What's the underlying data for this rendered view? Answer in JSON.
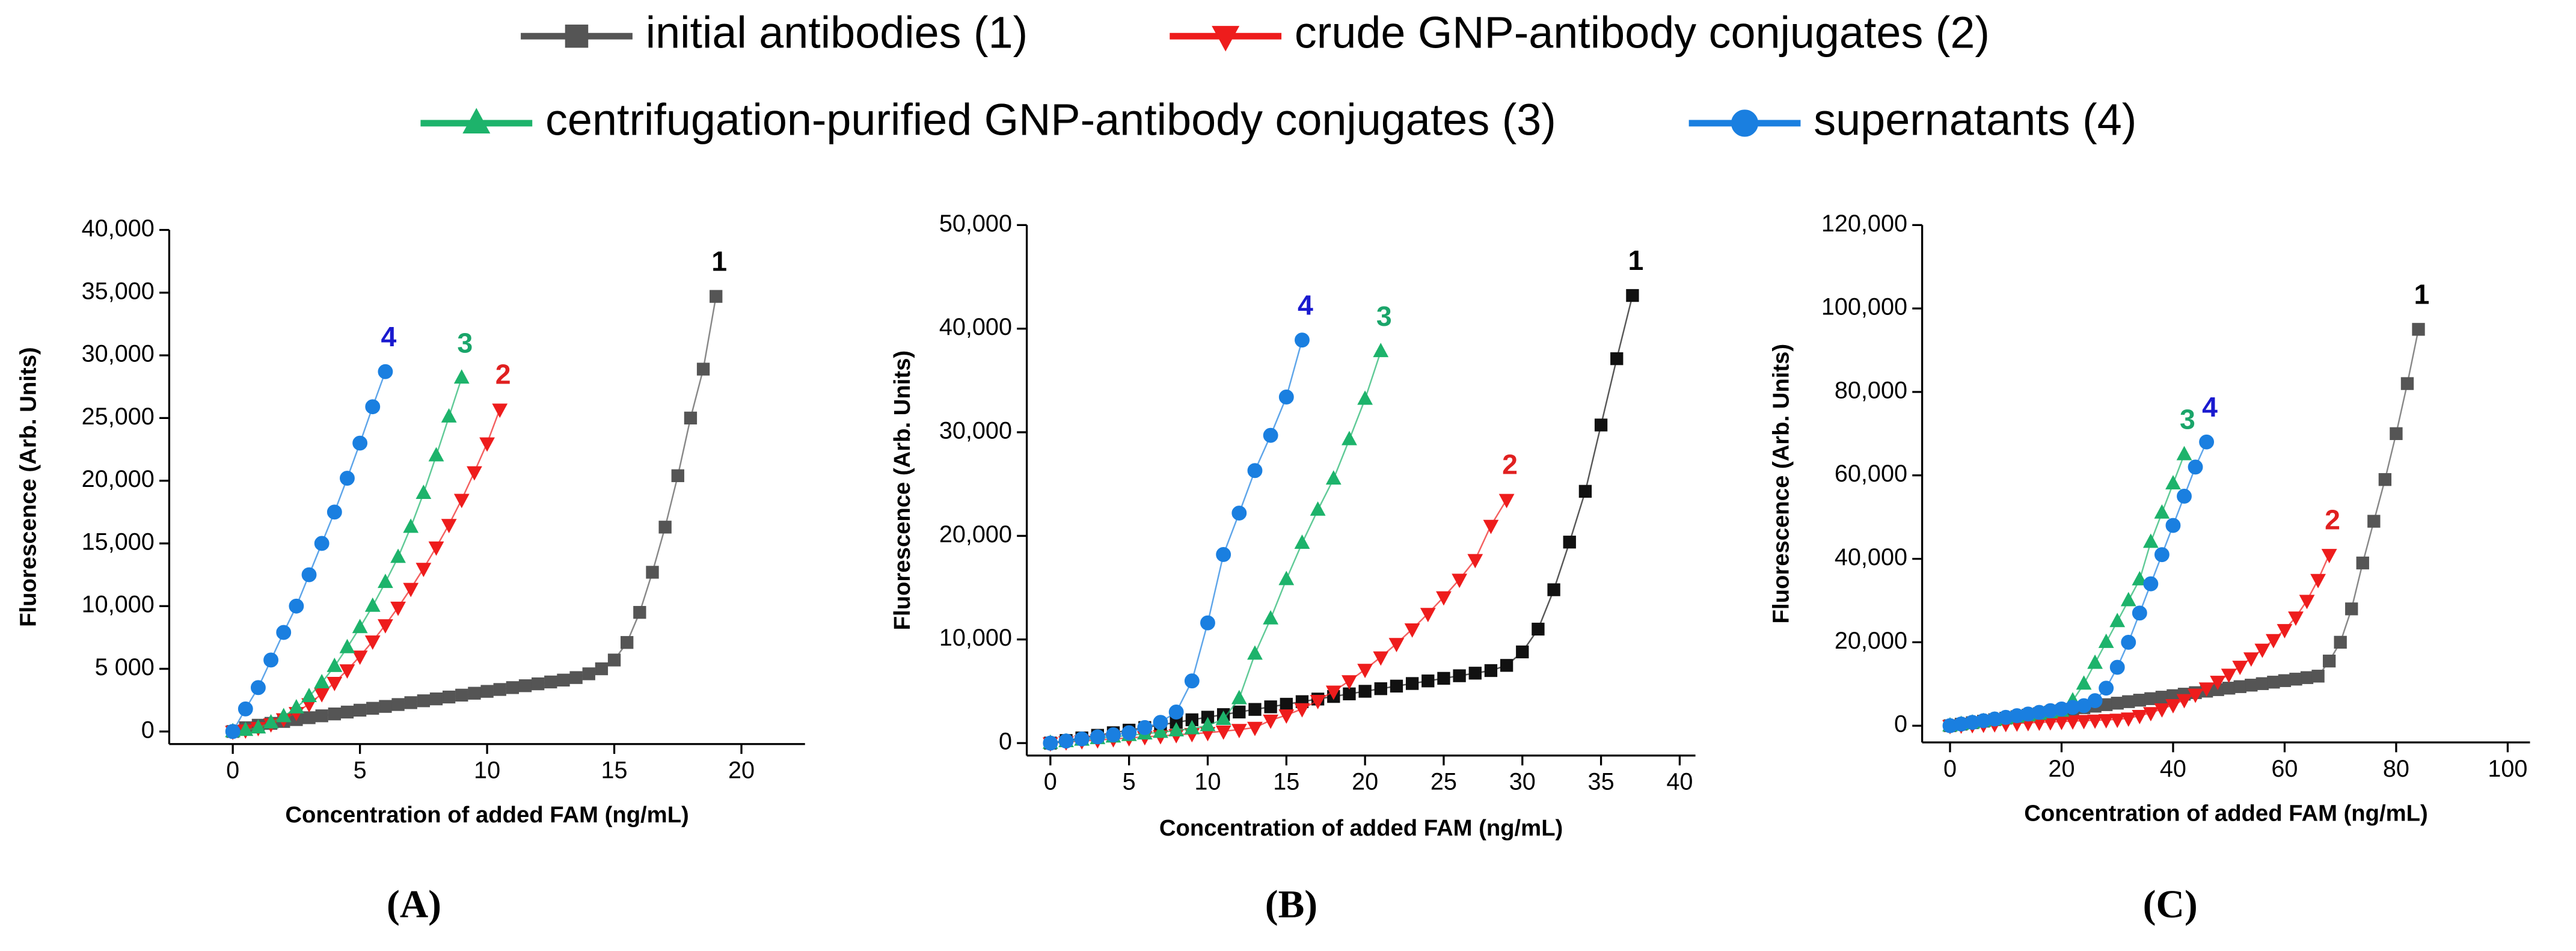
{
  "legend": [
    {
      "name": "initial antibodies (1)",
      "color": "#555555",
      "marker": "square"
    },
    {
      "name": "crude GNP-antibody conjugates (2)",
      "color": "#ee1c1c",
      "marker": "tri-down"
    },
    {
      "name": "centrifugation-purified GNP-antibody conjugates (3)",
      "color": "#1db36b",
      "marker": "tri-up"
    },
    {
      "name": "supernatants (4)",
      "color": "#1a7fe0",
      "marker": "circle"
    }
  ],
  "chart_data": [
    {
      "type": "line",
      "caption": "(A)",
      "x_label": "Concentration of added FAM (ng/mL)",
      "y_label": "Fluorescence (Arb. Units)",
      "xlim": [
        -2.5,
        22.5
      ],
      "xticks": [
        0,
        5,
        10,
        15,
        20
      ],
      "ylim": [
        -1000,
        40000
      ],
      "yticks": [
        0,
        {
          "value": 5000,
          "label": "5 000"
        },
        {
          "value": 10000,
          "label": "10,000"
        },
        {
          "value": 15000,
          "label": "15,000"
        },
        {
          "value": 20000,
          "label": "20,000"
        },
        {
          "value": 25000,
          "label": "25,000"
        },
        {
          "value": 30000,
          "label": "30,000"
        },
        {
          "value": 35000,
          "label": "35,000"
        },
        {
          "value": 40000,
          "label": "40,000"
        }
      ],
      "series": [
        {
          "label": "1",
          "color": "#555555",
          "label_color": "#000000",
          "x": [
            0,
            0.5,
            1,
            1.5,
            2,
            2.5,
            3,
            3.5,
            4,
            4.5,
            5,
            5.5,
            6,
            6.5,
            7,
            7.5,
            8,
            8.5,
            9,
            9.5,
            10,
            10.5,
            11,
            11.5,
            12,
            12.5,
            13,
            13.5,
            14,
            14.5,
            15,
            15.5,
            16,
            16.5,
            17,
            17.5,
            18,
            18.5,
            19
          ],
          "values": [
            0,
            300,
            500,
            650,
            800,
            950,
            1100,
            1250,
            1400,
            1550,
            1700,
            1850,
            2000,
            2150,
            2300,
            2450,
            2600,
            2750,
            2900,
            3050,
            3200,
            3350,
            3500,
            3650,
            3800,
            3950,
            4100,
            4300,
            4600,
            5000,
            5700,
            7100,
            9500,
            12700,
            16300,
            20400,
            25000,
            28900,
            34700
          ]
        },
        {
          "label": "2",
          "color": "#ee1c1c",
          "label_color": "#e02020",
          "x": [
            0,
            0.5,
            1,
            1.5,
            2,
            2.5,
            3,
            3.5,
            4,
            4.5,
            5,
            5.5,
            6,
            6.5,
            7,
            7.5,
            8,
            8.5,
            9,
            9.5,
            10,
            10.5
          ],
          "values": [
            0,
            100,
            300,
            600,
            1000,
            1500,
            2200,
            3000,
            3900,
            4900,
            6000,
            7200,
            8500,
            9900,
            11400,
            13000,
            14700,
            16500,
            18500,
            20700,
            23000,
            25700
          ]
        },
        {
          "label": "3",
          "color": "#1db36b",
          "label_color": "#1aa56a",
          "x": [
            0,
            0.5,
            1,
            1.5,
            2,
            2.5,
            3,
            3.5,
            4,
            4.5,
            5,
            5.5,
            6,
            6.5,
            7,
            7.5,
            8,
            8.5,
            9
          ],
          "values": [
            0,
            100,
            300,
            700,
            1200,
            1900,
            2800,
            3900,
            5200,
            6700,
            8300,
            10000,
            11900,
            13900,
            16300,
            19000,
            22000,
            25100,
            28200
          ]
        },
        {
          "label": "4",
          "color": "#1a7fe0",
          "label_color": "#1a1acf",
          "x": [
            0,
            0.5,
            1,
            1.5,
            2,
            2.5,
            3,
            3.5,
            4,
            4.5,
            5,
            5.5,
            6
          ],
          "values": [
            0,
            1800,
            3500,
            5700,
            7900,
            10000,
            12500,
            15000,
            17500,
            20200,
            23000,
            25900,
            28700
          ]
        }
      ]
    },
    {
      "type": "line",
      "caption": "(B)",
      "x_label": "Concentration of added FAM (ng/mL)",
      "y_label": "Fluorescence (Arb. Units)",
      "xlim": [
        -1.5,
        41
      ],
      "xticks": [
        0,
        5,
        10,
        15,
        20,
        25,
        30,
        35,
        40
      ],
      "ylim": [
        -1200,
        50000
      ],
      "yticks": [
        0,
        {
          "value": 10000,
          "label": "10,000"
        },
        {
          "value": 20000,
          "label": "20,000"
        },
        {
          "value": 30000,
          "label": "30,000"
        },
        {
          "value": 40000,
          "label": "40,000"
        },
        {
          "value": 50000,
          "label": "50,000"
        }
      ],
      "series": [
        {
          "label": "1",
          "color": "#111111",
          "label_color": "#000000",
          "x": [
            0,
            1,
            2,
            3,
            4,
            5,
            6,
            7,
            8,
            9,
            10,
            11,
            12,
            13,
            14,
            15,
            16,
            17,
            18,
            19,
            20,
            21,
            22,
            23,
            24,
            25,
            26,
            27,
            28,
            29,
            30,
            31,
            32,
            33,
            34,
            35,
            36,
            37
          ],
          "values": [
            0,
            250,
            500,
            750,
            1000,
            1250,
            1500,
            1750,
            2000,
            2250,
            2500,
            2750,
            3000,
            3250,
            3500,
            3750,
            4000,
            4250,
            4500,
            4750,
            5000,
            5250,
            5500,
            5750,
            6000,
            6250,
            6500,
            6750,
            7000,
            7500,
            8800,
            11000,
            14800,
            19400,
            24300,
            30700,
            37100,
            43200
          ]
        },
        {
          "label": "2",
          "color": "#ee1c1c",
          "label_color": "#e02020",
          "x": [
            0,
            1,
            2,
            3,
            4,
            5,
            6,
            7,
            8,
            9,
            10,
            11,
            12,
            13,
            14,
            15,
            16,
            17,
            18,
            19,
            20,
            21,
            22,
            23,
            24,
            25,
            26,
            27,
            28,
            29
          ],
          "values": [
            0,
            100,
            200,
            300,
            400,
            500,
            600,
            700,
            800,
            900,
            1000,
            1150,
            1300,
            1500,
            2200,
            2700,
            3300,
            4100,
            5000,
            6000,
            7100,
            8300,
            9600,
            11000,
            12500,
            14100,
            15800,
            17700,
            21000,
            23500
          ]
        },
        {
          "label": "3",
          "color": "#1db36b",
          "label_color": "#1aa56a",
          "x": [
            0,
            1,
            2,
            3,
            4,
            5,
            6,
            7,
            8,
            9,
            10,
            11,
            12,
            13,
            14,
            15,
            16,
            17,
            18,
            19,
            20,
            21
          ],
          "values": [
            0,
            150,
            300,
            450,
            600,
            750,
            900,
            1050,
            1200,
            1400,
            1700,
            2300,
            4300,
            8600,
            12000,
            15800,
            19300,
            22500,
            25500,
            29300,
            33200,
            37800
          ]
        },
        {
          "label": "4",
          "color": "#1a7fe0",
          "label_color": "#1a1acf",
          "x": [
            0,
            1,
            2,
            3,
            4,
            5,
            6,
            7,
            8,
            9,
            10,
            11,
            12,
            13,
            14,
            15,
            16
          ],
          "values": [
            0,
            200,
            400,
            600,
            800,
            1000,
            1500,
            2000,
            3000,
            6000,
            11600,
            18200,
            22200,
            26300,
            29700,
            33400,
            38900
          ]
        }
      ]
    },
    {
      "type": "line",
      "caption": "(C)",
      "x_label": "Concentration of added FAM (ng/mL)",
      "y_label": "Fluorescence (Arb. Units)",
      "xlim": [
        -5,
        104
      ],
      "xticks": [
        0,
        20,
        40,
        60,
        80,
        100
      ],
      "ylim": [
        -4000,
        120000
      ],
      "yticks": [
        0,
        {
          "value": 20000,
          "label": "20,000"
        },
        {
          "value": 40000,
          "label": "40,000"
        },
        {
          "value": 60000,
          "label": "60,000"
        },
        {
          "value": 80000,
          "label": "80,000"
        },
        {
          "value": 100000,
          "label": "100,000"
        },
        {
          "value": 120000,
          "label": "120,000"
        }
      ],
      "series": [
        {
          "label": "1",
          "color": "#555555",
          "label_color": "#000000",
          "x": [
            0,
            2,
            4,
            6,
            8,
            10,
            12,
            14,
            16,
            18,
            20,
            22,
            24,
            26,
            28,
            30,
            32,
            34,
            36,
            38,
            40,
            42,
            44,
            46,
            48,
            50,
            52,
            54,
            56,
            58,
            60,
            62,
            64,
            66,
            68,
            70,
            72,
            74,
            76,
            78,
            80,
            82,
            84
          ],
          "values": [
            0,
            360,
            720,
            1080,
            1440,
            1800,
            2160,
            2520,
            2880,
            3240,
            3600,
            3960,
            4320,
            4680,
            5040,
            5400,
            5760,
            6120,
            6480,
            6840,
            7200,
            7560,
            7920,
            8280,
            8640,
            9000,
            9360,
            9720,
            10080,
            10440,
            10800,
            11160,
            11520,
            11880,
            15500,
            20000,
            28000,
            39000,
            49000,
            59000,
            70000,
            82000,
            95000
          ]
        },
        {
          "label": "2",
          "color": "#ee1c1c",
          "label_color": "#e02020",
          "x": [
            0,
            2,
            4,
            6,
            8,
            10,
            12,
            14,
            16,
            18,
            20,
            22,
            24,
            26,
            28,
            30,
            32,
            34,
            36,
            38,
            40,
            42,
            44,
            46,
            48,
            50,
            52,
            54,
            56,
            58,
            60,
            62,
            64,
            66,
            68
          ],
          "values": [
            0,
            100,
            200,
            300,
            400,
            500,
            600,
            700,
            800,
            900,
            1000,
            1100,
            1200,
            1300,
            1400,
            1500,
            1800,
            2400,
            3100,
            4000,
            5000,
            6200,
            7500,
            9000,
            10600,
            12300,
            14200,
            16200,
            18300,
            20600,
            23000,
            26000,
            30000,
            35000,
            41000
          ]
        },
        {
          "label": "3",
          "color": "#1db36b",
          "label_color": "#1aa56a",
          "x": [
            0,
            2,
            4,
            6,
            8,
            10,
            12,
            14,
            16,
            18,
            20,
            22,
            24,
            26,
            28,
            30,
            32,
            34,
            36,
            38,
            40,
            42
          ],
          "values": [
            0,
            350,
            700,
            1050,
            1400,
            1750,
            2100,
            2450,
            2800,
            3150,
            3500,
            6000,
            10000,
            15000,
            20000,
            25000,
            30000,
            35000,
            44000,
            51000,
            58000,
            65000
          ]
        },
        {
          "label": "4",
          "color": "#1a7fe0",
          "label_color": "#1a1acf",
          "x": [
            0,
            2,
            4,
            6,
            8,
            10,
            12,
            14,
            16,
            18,
            20,
            22,
            24,
            26,
            28,
            30,
            32,
            34,
            36,
            38,
            40,
            42,
            44,
            46
          ],
          "values": [
            0,
            400,
            800,
            1200,
            1600,
            2000,
            2400,
            2800,
            3200,
            3600,
            4000,
            4400,
            4800,
            6000,
            9000,
            14000,
            20000,
            27000,
            34000,
            41000,
            48000,
            55000,
            62000,
            68000
          ]
        }
      ]
    }
  ]
}
